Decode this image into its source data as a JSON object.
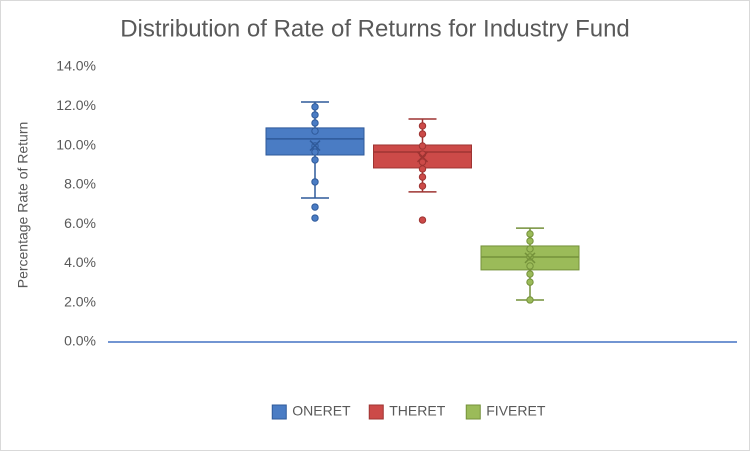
{
  "chart_data": {
    "type": "box",
    "title": "Distribution of Rate of Returns for Industry Fund",
    "y_label": "Percentage Rate of Return",
    "ylim": [
      0,
      14
    ],
    "yticks": [
      {
        "value": 0,
        "label": "0.0%"
      },
      {
        "value": 2,
        "label": "2.0%"
      },
      {
        "value": 4,
        "label": "4.0%"
      },
      {
        "value": 6,
        "label": "6.0%"
      },
      {
        "value": 8,
        "label": "8.0%"
      },
      {
        "value": 10,
        "label": "10.0%"
      },
      {
        "value": 12,
        "label": "12.0%"
      },
      {
        "value": 14,
        "label": "14.0%"
      }
    ],
    "grid": false,
    "legend": "bottom",
    "series": [
      {
        "name": "ONERET",
        "color": "#4a7cc4",
        "stroke": "#2f5a9a",
        "min": 7.33,
        "q1": 9.52,
        "median": 10.34,
        "q3": 10.9,
        "max": 12.22,
        "mean": 10.0,
        "points": [
          11.97,
          11.56,
          11.15,
          10.74,
          9.98,
          9.67,
          9.27,
          8.15,
          6.87,
          6.31
        ]
      },
      {
        "name": "THERET",
        "color": "#cc4a48",
        "stroke": "#9e3432",
        "min": 7.64,
        "q1": 8.86,
        "median": 9.67,
        "q3": 10.03,
        "max": 11.35,
        "mean": 9.42,
        "points": [
          11.0,
          10.59,
          9.98,
          9.57,
          9.16,
          8.81,
          8.4,
          7.94,
          6.21
        ]
      },
      {
        "name": "FIVERET",
        "color": "#9bbb59",
        "stroke": "#74913a",
        "min": 2.14,
        "q1": 3.67,
        "median": 4.33,
        "q3": 4.89,
        "max": 5.8,
        "mean": 4.28,
        "points": [
          5.5,
          5.14,
          4.74,
          4.33,
          3.87,
          3.46,
          3.05,
          2.14
        ]
      }
    ]
  }
}
